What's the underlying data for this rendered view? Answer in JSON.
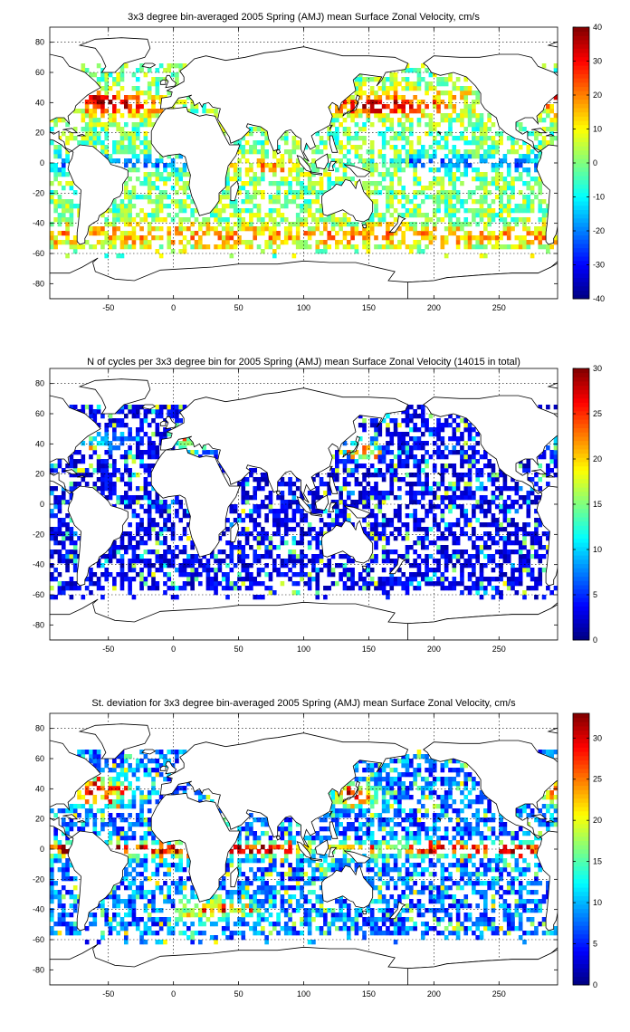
{
  "chart_data": [
    {
      "type": "heatmap",
      "title": "3x3 degree bin-averaged 2005 Spring (AMJ) mean Surface Zonal Velocity, cm/s",
      "xlabel": "",
      "ylabel": "",
      "xlim": [
        -95,
        295
      ],
      "ylim": [
        -90,
        90
      ],
      "x_ticks": [
        -50,
        0,
        50,
        100,
        150,
        200,
        250
      ],
      "y_ticks": [
        80,
        60,
        40,
        20,
        0,
        -20,
        -40,
        -60,
        -80
      ],
      "grid": true,
      "bin_size_deg": 3,
      "colorbar": {
        "min": -40,
        "max": 40,
        "ticks": [
          40,
          30,
          20,
          10,
          0,
          -10,
          -20,
          -30,
          -40
        ],
        "colormap": "jet"
      },
      "coverage": "sparse 3x3 degree bins over the global ocean, 60S-60N",
      "pattern": "westward (negative) flow along the equator in the Atlantic and Pacific; strong eastward flow (20-40) in the Antarctic Circumpolar Current and the western boundary currents of the North Atlantic and North Pacific"
    },
    {
      "type": "heatmap",
      "title": "N of cycles per 3x3 degree bin for 2005 Spring (AMJ) mean Surface Zonal Velocity (14015 in total)",
      "xlabel": "",
      "ylabel": "",
      "xlim": [
        -95,
        295
      ],
      "ylim": [
        -90,
        90
      ],
      "x_ticks": [
        -50,
        0,
        50,
        100,
        150,
        200,
        250
      ],
      "y_ticks": [
        80,
        60,
        40,
        20,
        0,
        -20,
        -40,
        -60,
        -80
      ],
      "grid": true,
      "bin_size_deg": 3,
      "total_cycles": 14015,
      "colorbar": {
        "min": 0,
        "max": 30,
        "ticks": [
          30,
          25,
          20,
          15,
          10,
          5,
          0
        ],
        "colormap": "jet"
      },
      "pattern": "most bins hold 1-5 cycles; 10-30 cycles in the Kuroshio region near 35N 145E and in the Mediterranean"
    },
    {
      "type": "heatmap",
      "title": "St. deviation for 3x3 degree bin-averaged 2005 Spring (AMJ) mean Surface Zonal Velocity, cm/s",
      "xlabel": "",
      "ylabel": "",
      "xlim": [
        -95,
        295
      ],
      "ylim": [
        -90,
        90
      ],
      "x_ticks": [
        -50,
        0,
        50,
        100,
        150,
        200,
        250
      ],
      "y_ticks": [
        80,
        60,
        40,
        20,
        0,
        -20,
        -40,
        -60,
        -80
      ],
      "grid": true,
      "bin_size_deg": 3,
      "colorbar": {
        "min": 0,
        "max": 33,
        "ticks": [
          30,
          25,
          20,
          15,
          10,
          5,
          0
        ],
        "colormap": "jet"
      },
      "pattern": "deviations above 25 cm/s along the equator, in the Gulf Stream, the Kuroshio and the Agulhas and circumpolar currents; mostly below 10 cm/s elsewhere"
    }
  ]
}
